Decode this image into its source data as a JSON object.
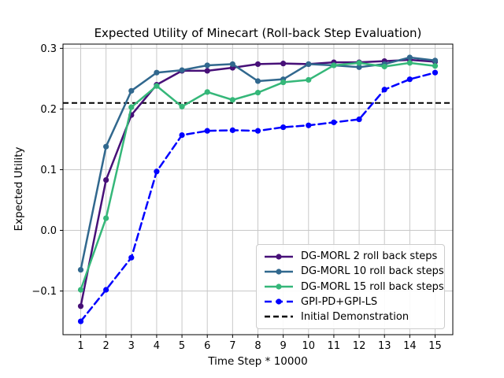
{
  "figure": {
    "title": "Expected Utility of Minecart (Roll-back Step Evaluation)",
    "xlabel": "Time Step * 10000",
    "ylabel": "Expected Utility"
  },
  "chart_data": {
    "type": "line",
    "title": "Expected Utility of Minecart (Roll-back Step Evaluation)",
    "xlabel": "Time Step * 10000",
    "ylabel": "Expected Utility",
    "grid": true,
    "grid_color": "#c8c8c8",
    "background": "#ffffff",
    "legend_position": "lower right",
    "xlim": [
      0.3,
      15.7
    ],
    "ylim": [
      -0.172,
      0.307
    ],
    "x": [
      1,
      2,
      3,
      4,
      5,
      6,
      7,
      8,
      9,
      10,
      11,
      12,
      13,
      14,
      15
    ],
    "x_tick_labels": [
      "1",
      "2",
      "3",
      "4",
      "5",
      "6",
      "7",
      "8",
      "9",
      "10",
      "11",
      "12",
      "13",
      "14",
      "15"
    ],
    "y_tick_values": [
      0.3,
      0.2,
      0.1,
      0.0,
      -0.1
    ],
    "y_tick_labels": [
      "0.3",
      "0.2",
      "0.1",
      "0.0",
      "−0.1"
    ],
    "series": [
      {
        "name": "DG-MORL 2 roll back steps",
        "color": "#471078",
        "dash": null,
        "marker": "circle",
        "values": [
          -0.125,
          0.083,
          0.19,
          0.24,
          0.263,
          0.263,
          0.268,
          0.274,
          0.275,
          0.274,
          0.277,
          0.277,
          0.279,
          0.281,
          0.278
        ]
      },
      {
        "name": "DG-MORL 10 roll back steps",
        "color": "#31688e",
        "dash": null,
        "marker": "circle",
        "values": [
          -0.065,
          0.138,
          0.23,
          0.26,
          0.264,
          0.272,
          0.274,
          0.246,
          0.249,
          0.274,
          0.272,
          0.269,
          0.274,
          0.285,
          0.28
        ]
      },
      {
        "name": "DG-MORL 15 roll back steps",
        "color": "#35b779",
        "dash": null,
        "marker": "circle",
        "values": [
          -0.098,
          0.02,
          0.203,
          0.238,
          0.204,
          0.228,
          0.215,
          0.227,
          0.244,
          0.248,
          0.272,
          0.276,
          0.27,
          0.276,
          0.271
        ]
      },
      {
        "name": "GPI-PD+GPI-LS",
        "color": "#0000ff",
        "dash": [
          9,
          5
        ],
        "marker": "circle",
        "values": [
          -0.15,
          -0.098,
          -0.045,
          0.097,
          0.157,
          0.164,
          0.165,
          0.164,
          0.17,
          0.173,
          0.178,
          0.183,
          0.232,
          0.249,
          0.26
        ]
      }
    ],
    "reference_line": {
      "label": "Initial Demonstration",
      "y": 0.21,
      "color": "#000000",
      "dash": [
        7,
        4
      ]
    }
  }
}
